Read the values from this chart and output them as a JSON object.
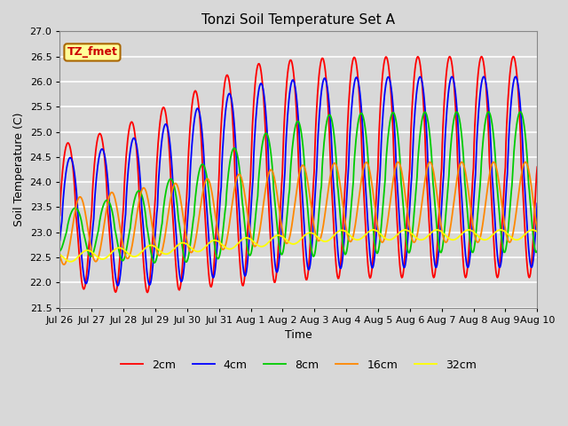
{
  "title": "Tonzi Soil Temperature Set A",
  "xlabel": "Time",
  "ylabel": "Soil Temperature (C)",
  "annotation": "TZ_fmet",
  "ylim": [
    21.5,
    27.0
  ],
  "yticks": [
    21.5,
    22.0,
    22.5,
    23.0,
    23.5,
    24.0,
    24.5,
    25.0,
    25.5,
    26.0,
    26.5,
    27.0
  ],
  "xtick_labels": [
    "Jul 26",
    "Jul 27",
    "Jul 28",
    "Jul 29",
    "Jul 30",
    "Jul 31",
    "Aug 1",
    "Aug 2",
    "Aug 3",
    "Aug 4",
    "Aug 5",
    "Aug 6",
    "Aug 7",
    "Aug 8",
    "Aug 9",
    "Aug 10"
  ],
  "colors": {
    "2cm": "#ff0000",
    "4cm": "#0000ff",
    "8cm": "#00cc00",
    "16cm": "#ff8800",
    "32cm": "#ffff00"
  },
  "bg_color": "#d8d8d8",
  "plot_bg_color": "#d8d8d8",
  "grid_color": "#ffffff",
  "annotation_bg": "#ffff99",
  "annotation_border": "#aa6600"
}
